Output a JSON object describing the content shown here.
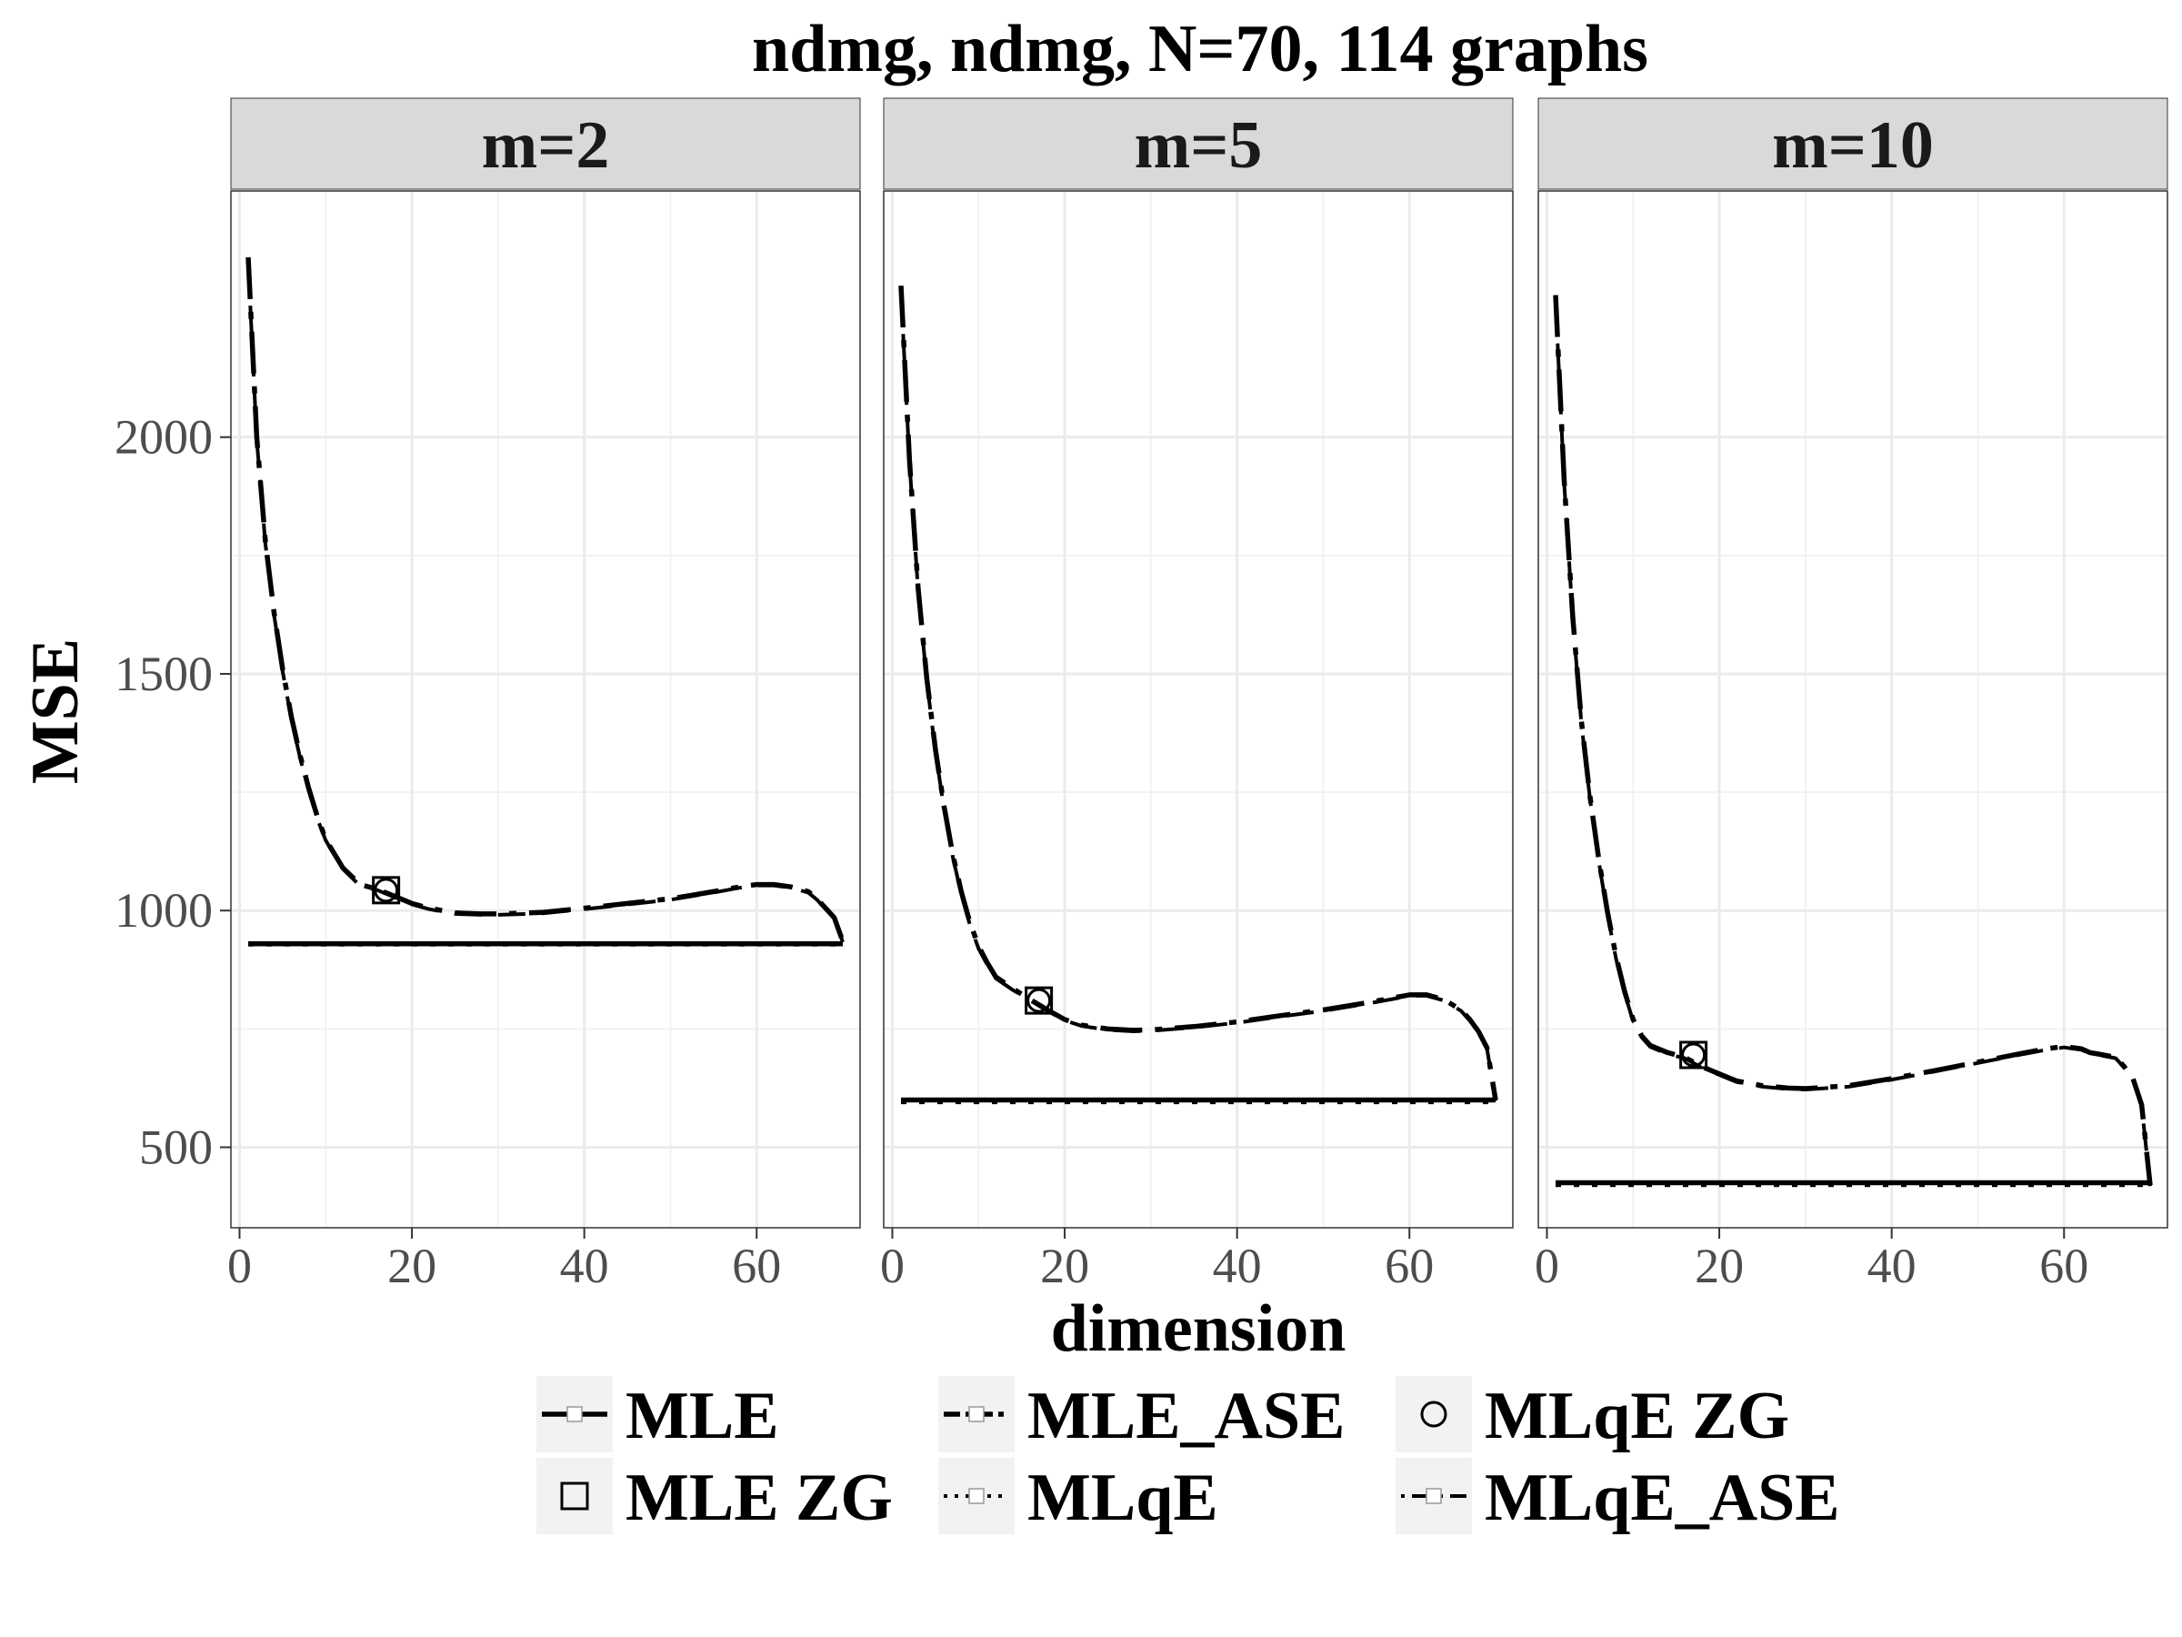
{
  "chart_data": {
    "type": "line",
    "title": "ndmg, ndmg, N=70, 114 graphs",
    "xlabel": "dimension",
    "ylabel": "MSE",
    "xlim": [
      -1,
      72
    ],
    "ylim": [
      330,
      2520
    ],
    "x_ticks": [
      0,
      20,
      40,
      60
    ],
    "y_ticks": [
      500,
      1000,
      1500,
      2000
    ],
    "grid": true,
    "legend_position": "bottom",
    "legend": {
      "items": [
        {
          "key": "MLE",
          "label": "MLE"
        },
        {
          "key": "MLE_ASE",
          "label": "MLE_ASE"
        },
        {
          "key": "MLqE_ZG",
          "label": "MLqE ZG"
        },
        {
          "key": "MLE_ZG",
          "label": "MLE ZG"
        },
        {
          "key": "MLqE",
          "label": "MLqE"
        },
        {
          "key": "MLqE_ASE",
          "label": "MLqE_ASE"
        }
      ]
    },
    "panels": [
      {
        "label": "m=2",
        "series": [
          {
            "key": "MLE",
            "x": [
              1,
              70
            ],
            "y": [
              930,
              930
            ]
          },
          {
            "key": "MLqE",
            "x": [
              1,
              70
            ],
            "y": [
              928,
              928
            ]
          },
          {
            "key": "MLE_ASE",
            "x": [
              1,
              2,
              3,
              4,
              5,
              6,
              7,
              8,
              9,
              10,
              12,
              14,
              16,
              18,
              20,
              22,
              25,
              28,
              30,
              35,
              40,
              45,
              50,
              55,
              58,
              60,
              62,
              64,
              66,
              67,
              68,
              69,
              70
            ],
            "y": [
              2380,
              2000,
              1780,
              1630,
              1510,
              1410,
              1330,
              1260,
              1200,
              1150,
              1090,
              1055,
              1045,
              1030,
              1015,
              1005,
              995,
              993,
              993,
              996,
              1005,
              1015,
              1025,
              1040,
              1050,
              1055,
              1055,
              1050,
              1040,
              1025,
              1005,
              985,
              935
            ]
          },
          {
            "key": "MLqE_ASE",
            "x": [
              1,
              2,
              3,
              4,
              5,
              6,
              7,
              8,
              9,
              10,
              12,
              14,
              16,
              18,
              20,
              22,
              25,
              28,
              30,
              35,
              40,
              45,
              50,
              55,
              58,
              60,
              62,
              64,
              66,
              67,
              68,
              69,
              70
            ],
            "y": [
              2370,
              1995,
              1775,
              1625,
              1505,
              1405,
              1325,
              1255,
              1195,
              1148,
              1088,
              1052,
              1043,
              1028,
              1013,
              1003,
              993,
              991,
              991,
              994,
              1003,
              1013,
              1023,
              1038,
              1048,
              1053,
              1053,
              1048,
              1038,
              1023,
              1003,
              983,
              933
            ]
          },
          {
            "key": "MLE_ZG",
            "x": [
              17
            ],
            "y": [
              1043
            ]
          },
          {
            "key": "MLqE_ZG",
            "x": [
              17
            ],
            "y": [
              1043
            ]
          }
        ]
      },
      {
        "label": "m=5",
        "series": [
          {
            "key": "MLE",
            "x": [
              1,
              70
            ],
            "y": [
              600,
              600
            ]
          },
          {
            "key": "MLqE",
            "x": [
              1,
              70
            ],
            "y": [
              595,
              595
            ]
          },
          {
            "key": "MLE_ASE",
            "x": [
              1,
              2,
              3,
              4,
              5,
              6,
              7,
              8,
              9,
              10,
              11,
              12,
              14,
              16,
              18,
              20,
              22,
              25,
              28,
              30,
              35,
              40,
              45,
              50,
              55,
              58,
              60,
              62,
              64,
              66,
              67,
              68,
              69,
              70
            ],
            "y": [
              2320,
              1950,
              1680,
              1490,
              1340,
              1220,
              1120,
              1040,
              975,
              925,
              890,
              860,
              835,
              812,
              790,
              770,
              758,
              750,
              747,
              748,
              755,
              765,
              778,
              790,
              805,
              815,
              822,
              822,
              812,
              790,
              770,
              745,
              710,
              600
            ]
          },
          {
            "key": "MLqE_ASE",
            "x": [
              1,
              2,
              3,
              4,
              5,
              6,
              7,
              8,
              9,
              10,
              11,
              12,
              14,
              16,
              18,
              20,
              22,
              25,
              28,
              30,
              35,
              40,
              45,
              50,
              55,
              58,
              60,
              62,
              64,
              66,
              67,
              68,
              69,
              70
            ],
            "y": [
              2310,
              1945,
              1675,
              1485,
              1335,
              1215,
              1115,
              1035,
              970,
              920,
              886,
              857,
              832,
              810,
              788,
              768,
              756,
              748,
              745,
              746,
              753,
              763,
              776,
              788,
              803,
              813,
              820,
              820,
              810,
              788,
              768,
              743,
              708,
              598
            ]
          },
          {
            "key": "MLE_ZG",
            "x": [
              17
            ],
            "y": [
              810
            ]
          },
          {
            "key": "MLqE_ZG",
            "x": [
              17
            ],
            "y": [
              810
            ]
          }
        ]
      },
      {
        "label": "m=10",
        "series": [
          {
            "key": "MLE",
            "x": [
              1,
              70
            ],
            "y": [
              425,
              425
            ]
          },
          {
            "key": "MLqE",
            "x": [
              1,
              70
            ],
            "y": [
              420,
              420
            ]
          },
          {
            "key": "MLE_ASE",
            "x": [
              1,
              2,
              3,
              4,
              5,
              6,
              7,
              8,
              9,
              10,
              11,
              12,
              14,
              16,
              18,
              20,
              22,
              25,
              28,
              30,
              35,
              40,
              45,
              50,
              55,
              58,
              60,
              62,
              63,
              64,
              66,
              67,
              68,
              69,
              70
            ],
            "y": [
              2300,
              1910,
              1620,
              1400,
              1240,
              1110,
              1000,
              905,
              830,
              770,
              735,
              715,
              700,
              690,
              670,
              655,
              640,
              630,
              625,
              624,
              630,
              645,
              662,
              680,
              698,
              708,
              713,
              708,
              700,
              697,
              690,
              670,
              645,
              590,
              420
            ]
          },
          {
            "key": "MLqE_ASE",
            "x": [
              1,
              2,
              3,
              4,
              5,
              6,
              7,
              8,
              9,
              10,
              11,
              12,
              14,
              16,
              18,
              20,
              22,
              25,
              28,
              30,
              35,
              40,
              45,
              50,
              55,
              58,
              60,
              62,
              63,
              64,
              66,
              67,
              68,
              69,
              70
            ],
            "y": [
              2290,
              1905,
              1615,
              1395,
              1235,
              1105,
              995,
              900,
              826,
              766,
              732,
              712,
              697,
              688,
              668,
              653,
              638,
              628,
              623,
              622,
              628,
              643,
              660,
              678,
              696,
              706,
              711,
              706,
              698,
              695,
              688,
              668,
              643,
              588,
              418
            ]
          },
          {
            "key": "MLE_ZG",
            "x": [
              17
            ],
            "y": [
              695
            ]
          },
          {
            "key": "MLqE_ZG",
            "x": [
              17
            ],
            "y": [
              695
            ]
          }
        ]
      }
    ]
  }
}
